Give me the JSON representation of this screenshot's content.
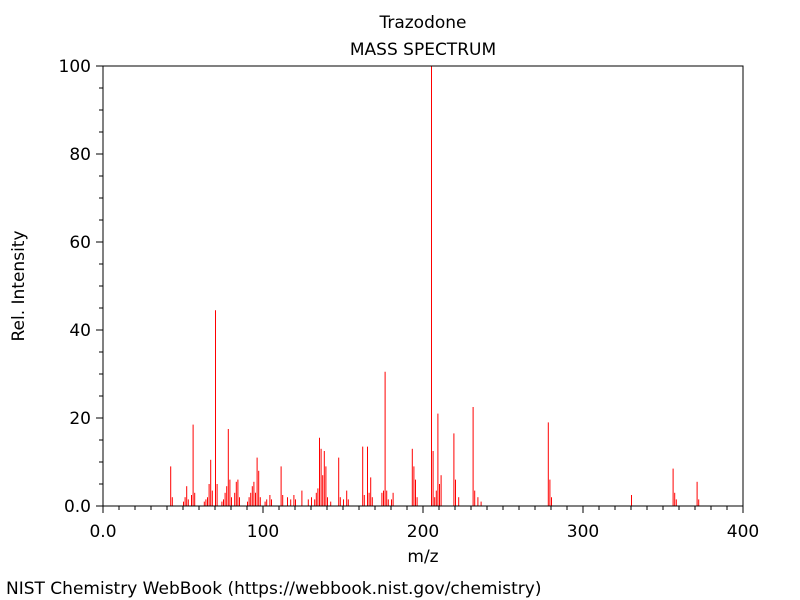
{
  "chart_data": {
    "type": "bar",
    "title": "Trazodone",
    "subtitle": "MASS SPECTRUM",
    "xlabel": "m/z",
    "ylabel": "Rel. Intensity",
    "xlim": [
      0,
      400
    ],
    "ylim": [
      0,
      100
    ],
    "x_ticks": [
      "0.0",
      "100",
      "200",
      "300",
      "400"
    ],
    "y_ticks": [
      "0.0",
      "20",
      "40",
      "60",
      "80",
      "100"
    ],
    "grid": false,
    "bar_color": "#ff0000",
    "peaks": [
      [
        42,
        9.0
      ],
      [
        43,
        2.0
      ],
      [
        50,
        1.0
      ],
      [
        51,
        2.0
      ],
      [
        52,
        4.5
      ],
      [
        53,
        1.5
      ],
      [
        55,
        2.5
      ],
      [
        56,
        18.5
      ],
      [
        57,
        3.0
      ],
      [
        63,
        1.0
      ],
      [
        64,
        1.5
      ],
      [
        65,
        2.0
      ],
      [
        66,
        5.0
      ],
      [
        67,
        10.5
      ],
      [
        68,
        3.5
      ],
      [
        70,
        44.5
      ],
      [
        71,
        5.0
      ],
      [
        74,
        1.0
      ],
      [
        75,
        1.5
      ],
      [
        76,
        3.0
      ],
      [
        77,
        4.5
      ],
      [
        78,
        17.5
      ],
      [
        79,
        6.0
      ],
      [
        80,
        2.0
      ],
      [
        82,
        3.0
      ],
      [
        83,
        5.5
      ],
      [
        84,
        6.0
      ],
      [
        85,
        2.0
      ],
      [
        90,
        1.0
      ],
      [
        91,
        2.0
      ],
      [
        92,
        3.0
      ],
      [
        93,
        4.5
      ],
      [
        94,
        5.5
      ],
      [
        95,
        3.0
      ],
      [
        96,
        11.0
      ],
      [
        97,
        8.0
      ],
      [
        98,
        2.0
      ],
      [
        101,
        1.0
      ],
      [
        102,
        1.5
      ],
      [
        104,
        2.5
      ],
      [
        105,
        1.5
      ],
      [
        111,
        9.0
      ],
      [
        112,
        2.5
      ],
      [
        115,
        2.0
      ],
      [
        117,
        1.5
      ],
      [
        119,
        2.5
      ],
      [
        120,
        1.5
      ],
      [
        124,
        3.5
      ],
      [
        128,
        1.5
      ],
      [
        130,
        2.0
      ],
      [
        132,
        1.5
      ],
      [
        133,
        3.0
      ],
      [
        134,
        4.0
      ],
      [
        135,
        15.5
      ],
      [
        136,
        13.0
      ],
      [
        137,
        7.0
      ],
      [
        138,
        12.5
      ],
      [
        139,
        9.0
      ],
      [
        140,
        2.0
      ],
      [
        142,
        1.0
      ],
      [
        147,
        11.0
      ],
      [
        148,
        2.0
      ],
      [
        150,
        1.5
      ],
      [
        152,
        3.5
      ],
      [
        153,
        1.5
      ],
      [
        162,
        13.5
      ],
      [
        163,
        2.5
      ],
      [
        165,
        13.5
      ],
      [
        166,
        3.0
      ],
      [
        167,
        6.5
      ],
      [
        168,
        2.0
      ],
      [
        174,
        3.0
      ],
      [
        175,
        3.5
      ],
      [
        176,
        30.5
      ],
      [
        177,
        3.5
      ],
      [
        178,
        1.5
      ],
      [
        180,
        1.5
      ],
      [
        181,
        3.0
      ],
      [
        193,
        13.0
      ],
      [
        194,
        9.0
      ],
      [
        195,
        6.0
      ],
      [
        196,
        2.0
      ],
      [
        205,
        100.0
      ],
      [
        206,
        12.5
      ],
      [
        207,
        2.0
      ],
      [
        208,
        3.5
      ],
      [
        209,
        21.0
      ],
      [
        210,
        5.0
      ],
      [
        211,
        7.0
      ],
      [
        219,
        16.5
      ],
      [
        220,
        6.0
      ],
      [
        222,
        2.0
      ],
      [
        231,
        22.5
      ],
      [
        232,
        3.5
      ],
      [
        234,
        2.0
      ],
      [
        236,
        1.0
      ],
      [
        278,
        19.0
      ],
      [
        279,
        6.0
      ],
      [
        280,
        2.0
      ],
      [
        330,
        2.5
      ],
      [
        356,
        8.5
      ],
      [
        357,
        3.0
      ],
      [
        358,
        1.5
      ],
      [
        371,
        5.5
      ],
      [
        372,
        1.5
      ]
    ]
  },
  "footer": {
    "source": "NIST Chemistry WebBook (https://webbook.nist.gov/chemistry)"
  }
}
